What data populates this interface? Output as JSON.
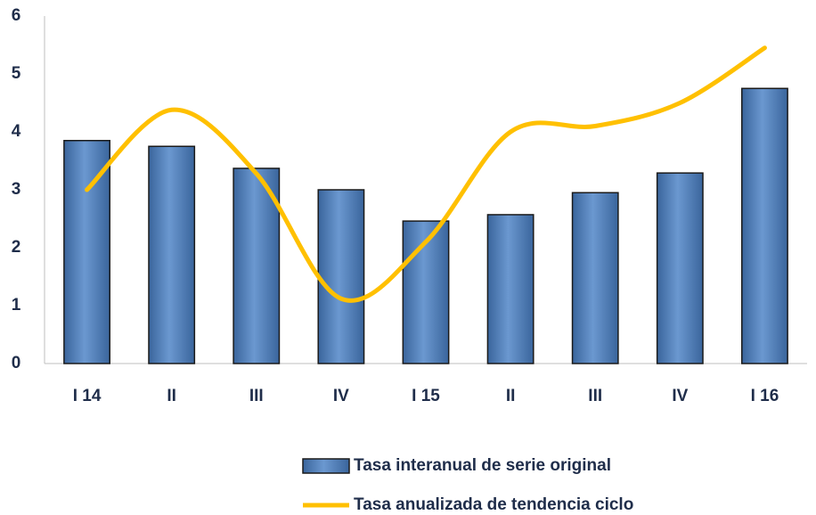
{
  "chart_data": {
    "type": "bar",
    "categories": [
      "I 14",
      "II",
      "III",
      "IV",
      "I 15",
      "II",
      "III",
      "IV",
      "I 16"
    ],
    "series": [
      {
        "name": "Tasa interanual de serie original",
        "color": "#4f81bd",
        "type": "bar",
        "values": [
          3.85,
          3.75,
          3.37,
          3.0,
          2.46,
          2.57,
          2.95,
          3.29,
          4.75
        ]
      },
      {
        "name": "Tasa anualizada de tendencia ciclo",
        "color": "#ffc000",
        "type": "line",
        "values": [
          3.0,
          4.38,
          3.28,
          1.12,
          2.1,
          4.0,
          4.1,
          4.5,
          5.45
        ]
      }
    ],
    "ylim": [
      0,
      6
    ],
    "yticks": [
      0,
      1,
      2,
      3,
      4,
      5,
      6
    ],
    "grid": false,
    "legend": "bottom"
  }
}
